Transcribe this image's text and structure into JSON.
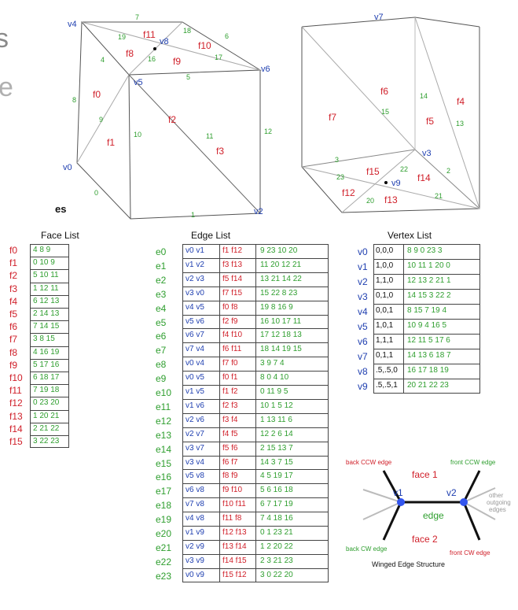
{
  "cut_text": {
    "left_s": "s",
    "left_e": "e",
    "tables_es": "es"
  },
  "colors": {
    "face": "#d0202a",
    "edge": "#2e9e2e",
    "vertex": "#1f3fb0",
    "line": "#555555",
    "dot": "#3355ee"
  },
  "cube_left": {
    "vertices": [
      {
        "id": "v4",
        "label": "v4"
      },
      {
        "id": "v5",
        "label": "v5"
      },
      {
        "id": "v6",
        "label": "v6"
      },
      {
        "id": "v8",
        "label": "v8"
      },
      {
        "id": "v0",
        "label": "v0"
      },
      {
        "id": "v2",
        "label": "v2"
      }
    ],
    "faces": [
      "f0",
      "f1",
      "f2",
      "f3",
      "f8",
      "f9",
      "f10",
      "f11"
    ],
    "edges": [
      "0",
      "1",
      "4",
      "5",
      "6",
      "7",
      "8",
      "9",
      "10",
      "11",
      "12",
      "16",
      "17",
      "18",
      "19"
    ]
  },
  "cube_right": {
    "vertices": [
      {
        "id": "v7",
        "label": "v7"
      },
      {
        "id": "v3",
        "label": "v3"
      },
      {
        "id": "v9",
        "label": "v9"
      }
    ],
    "faces": [
      "f4",
      "f5",
      "f6",
      "f7",
      "f12",
      "f13",
      "f14",
      "f15"
    ],
    "edges": [
      "2",
      "3",
      "13",
      "14",
      "15",
      "20",
      "21",
      "22",
      "23"
    ]
  },
  "face_list": {
    "title": "Face List",
    "rows": [
      {
        "id": "f0",
        "val": "4 8  9"
      },
      {
        "id": "f1",
        "val": "0 10 9"
      },
      {
        "id": "f2",
        "val": "5 10 11"
      },
      {
        "id": "f3",
        "val": "1 12 11"
      },
      {
        "id": "f4",
        "val": "6 12 13"
      },
      {
        "id": "f5",
        "val": "2 14 13"
      },
      {
        "id": "f6",
        "val": "7 14 15"
      },
      {
        "id": "f7",
        "val": "3 8  15"
      },
      {
        "id": "f8",
        "val": "4 16 19"
      },
      {
        "id": "f9",
        "val": "5 17 16"
      },
      {
        "id": "f10",
        "val": "6 18 17"
      },
      {
        "id": "f11",
        "val": "7 19 18"
      },
      {
        "id": "f12",
        "val": "0 23 20"
      },
      {
        "id": "f13",
        "val": "1 20 21"
      },
      {
        "id": "f14",
        "val": "2 21 22"
      },
      {
        "id": "f15",
        "val": "3 22 23"
      }
    ]
  },
  "edge_list": {
    "title": "Edge List",
    "rows": [
      {
        "id": "e0",
        "v": "v0  v1",
        "f": "f1  f12",
        "e": "9  23  10  20"
      },
      {
        "id": "e1",
        "v": "v1  v2",
        "f": "f3  f13",
        "e": "11  20  12  21"
      },
      {
        "id": "e2",
        "v": "v2  v3",
        "f": "f5  f14",
        "e": "13  21  14  22"
      },
      {
        "id": "e3",
        "v": "v3  v0",
        "f": "f7  f15",
        "e": "15  22  8  23"
      },
      {
        "id": "e4",
        "v": "v4  v5",
        "f": "f0  f8",
        "e": "19  8  16  9"
      },
      {
        "id": "e5",
        "v": "v5  v6",
        "f": "f2  f9",
        "e": "16  10  17  11"
      },
      {
        "id": "e6",
        "v": "v6  v7",
        "f": "f4  f10",
        "e": "17  12  18  13"
      },
      {
        "id": "e7",
        "v": "v7  v4",
        "f": "f6  f11",
        "e": "18  14  19  15"
      },
      {
        "id": "e8",
        "v": "v0  v4",
        "f": "f7  f0",
        "e": "3  9  7  4"
      },
      {
        "id": "e9",
        "v": "v0  v5",
        "f": "f0  f1",
        "e": "8  0  4  10"
      },
      {
        "id": "e10",
        "v": "v1  v5",
        "f": "f1  f2",
        "e": "0  11  9  5"
      },
      {
        "id": "e11",
        "v": "v1  v6",
        "f": "f2  f3",
        "e": "10  1  5  12"
      },
      {
        "id": "e12",
        "v": "v2  v6",
        "f": "f3  f4",
        "e": "1  13  11  6"
      },
      {
        "id": "e13",
        "v": "v2  v7",
        "f": "f4  f5",
        "e": "12  2  6  14"
      },
      {
        "id": "e14",
        "v": "v3  v7",
        "f": "f5  f6",
        "e": "2  15  13  7"
      },
      {
        "id": "e15",
        "v": "v3  v4",
        "f": "f6  f7",
        "e": "14  3  7  15"
      },
      {
        "id": "e16",
        "v": "v5  v8",
        "f": "f8  f9",
        "e": "4  5  19  17"
      },
      {
        "id": "e17",
        "v": "v6  v8",
        "f": "f9 f10",
        "e": "5  6  16  18"
      },
      {
        "id": "e18",
        "v": "v7  v8",
        "f": "f10 f11",
        "e": "6  7  17  19"
      },
      {
        "id": "e19",
        "v": "v4  v8",
        "f": "f11 f8",
        "e": "7  4  18  16"
      },
      {
        "id": "e20",
        "v": "v1  v9",
        "f": "f12 f13",
        "e": "0  1  23  21"
      },
      {
        "id": "e21",
        "v": "v2  v9",
        "f": "f13 f14",
        "e": "1  2  20  22"
      },
      {
        "id": "e22",
        "v": "v3  v9",
        "f": "f14 f15",
        "e": "2  3  21  23"
      },
      {
        "id": "e23",
        "v": "v0  v9",
        "f": "f15 f12",
        "e": "3  0  22  20"
      }
    ]
  },
  "vertex_list": {
    "title": "Vertex List",
    "rows": [
      {
        "id": "v0",
        "pos": "0,0,0",
        "e": "8  9  0  23  3"
      },
      {
        "id": "v1",
        "pos": "1,0,0",
        "e": "10 11  1  20  0"
      },
      {
        "id": "v2",
        "pos": "1,1,0",
        "e": "12 13  2  21  1"
      },
      {
        "id": "v3",
        "pos": "0,1,0",
        "e": "14 15  3  22  2"
      },
      {
        "id": "v4",
        "pos": "0,0,1",
        "e": "8  15  7  19  4"
      },
      {
        "id": "v5",
        "pos": "1,0,1",
        "e": "10  9  4  16  5"
      },
      {
        "id": "v6",
        "pos": "1,1,1",
        "e": "12 11  5  17  6"
      },
      {
        "id": "v7",
        "pos": "0,1,1",
        "e": "14 13  6  18  7"
      },
      {
        "id": "v8",
        "pos": ".5,.5,0",
        "e": "16 17 18 19"
      },
      {
        "id": "v9",
        "pos": ".5,.5,1",
        "e": "20  21  22 23"
      }
    ]
  },
  "winged": {
    "back_ccw": "back CCW edge",
    "front_ccw": "front CCW edge",
    "back_cw": "back CW edge",
    "front_cw": "front CW edge",
    "face1": "face 1",
    "face2": "face 2",
    "edge": "edge",
    "v1": "v1",
    "v2": "v2",
    "other": [
      "other",
      "outgoing",
      "edges"
    ],
    "caption": "Winged Edge Structure"
  }
}
